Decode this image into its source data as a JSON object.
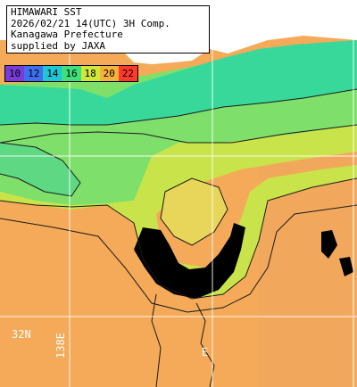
{
  "title": {
    "lines": [
      "HIMAWARI SST",
      "2026/02/21 14(UTC) 3H Comp.",
      "Kanagawa Prefecture",
      "supplied by JAXA"
    ]
  },
  "color_scale": {
    "labels": [
      "10",
      "12",
      "14",
      "16",
      "18",
      "20",
      "22"
    ],
    "colors": [
      "#7a3cd8",
      "#3f6ff0",
      "#1fc7d6",
      "#3ee07c",
      "#cfe83a",
      "#f6b23a",
      "#ff3a2a"
    ]
  },
  "grid_labels": {
    "lat": "32N",
    "lon": "138E",
    "lon_partial": "E"
  },
  "palette": {
    "land": "#ffffff",
    "no_data": "#000000",
    "sst_cold": "#38d89a",
    "sst_cool": "#7ee06a",
    "sst_mid": "#c9e44a",
    "sst_warm": "#f2c85a",
    "sst_hot": "#f4aa58",
    "grid": "#ffffff"
  }
}
